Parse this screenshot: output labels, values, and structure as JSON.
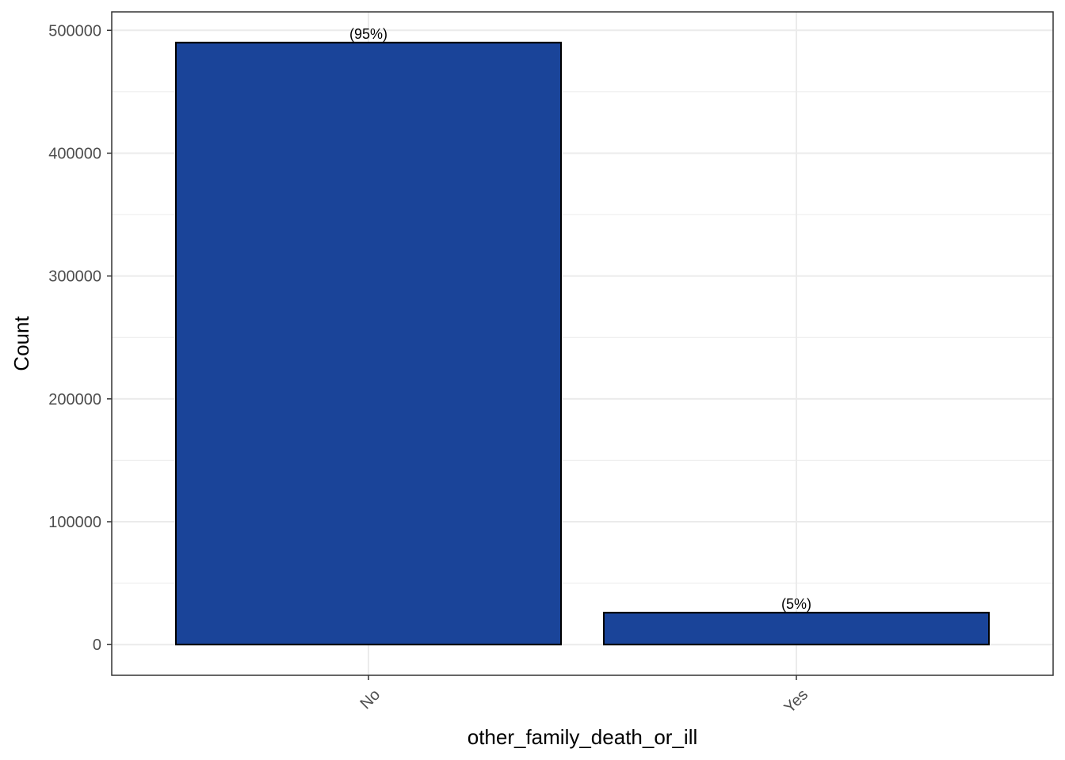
{
  "chart_data": {
    "type": "bar",
    "categories": [
      "No",
      "Yes"
    ],
    "values": [
      490000,
      26000
    ],
    "data_labels": [
      "(95%)",
      "(5%)"
    ],
    "xlabel": "other_family_death_or_ill",
    "ylabel": "Count",
    "ylim": [
      -25000,
      515000
    ],
    "yticks": [
      0,
      100000,
      200000,
      300000,
      400000,
      500000
    ],
    "ytick_labels": [
      "0",
      "100000",
      "200000",
      "300000",
      "400000",
      "500000"
    ],
    "grid": true,
    "legend": "none",
    "bar_fill": "#1a4499",
    "bar_outline": "#000000",
    "grid_color": "#ebebeb",
    "panel_border": "#333333",
    "x_tick_rotation_deg": -45
  }
}
